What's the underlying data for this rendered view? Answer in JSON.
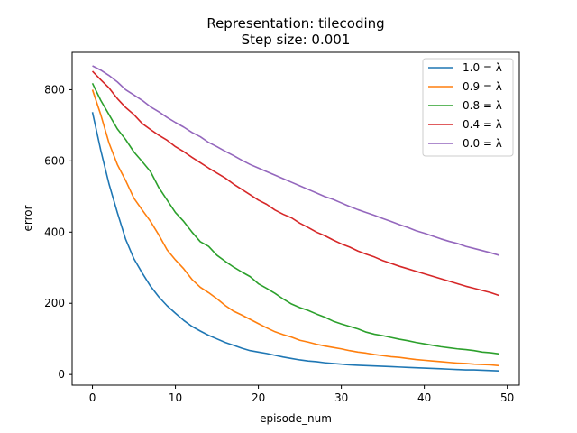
{
  "chart_data": {
    "type": "line",
    "title_lines": [
      "Representation: tilecoding",
      "Step size: 0.001"
    ],
    "xlabel": "episode_num",
    "ylabel": "error",
    "xlim": [
      -2.45,
      51.45
    ],
    "ylim": [
      -30,
      905
    ],
    "xticks": [
      0,
      10,
      20,
      30,
      40,
      50
    ],
    "yticks": [
      0,
      200,
      400,
      600,
      800
    ],
    "grid": false,
    "legend_position": "top-right",
    "x": [
      0,
      1,
      2,
      3,
      4,
      5,
      6,
      7,
      8,
      9,
      10,
      11,
      12,
      13,
      14,
      15,
      16,
      17,
      18,
      19,
      20,
      21,
      22,
      23,
      24,
      25,
      26,
      27,
      28,
      29,
      30,
      31,
      32,
      33,
      34,
      35,
      36,
      37,
      38,
      39,
      40,
      41,
      42,
      43,
      44,
      45,
      46,
      47,
      48,
      49
    ],
    "series": [
      {
        "name": "1.0 = λ",
        "color": "#1f77b4",
        "values": [
          737,
          630,
          535,
          455,
          380,
          325,
          285,
          248,
          218,
          193,
          172,
          152,
          135,
          122,
          110,
          100,
          90,
          82,
          74,
          67,
          63,
          59,
          54,
          49,
          45,
          41,
          38,
          36,
          33,
          31,
          29,
          27,
          26,
          25,
          24,
          23,
          22,
          21,
          20,
          19,
          18,
          17,
          16,
          15,
          14,
          13,
          13,
          12,
          11,
          10
        ]
      },
      {
        "name": "0.9 = λ",
        "color": "#ff7f0e",
        "values": [
          800,
          730,
          650,
          590,
          545,
          495,
          462,
          430,
          392,
          350,
          322,
          297,
          267,
          245,
          230,
          213,
          194,
          178,
          167,
          155,
          143,
          131,
          120,
          112,
          105,
          96,
          91,
          85,
          80,
          76,
          72,
          67,
          63,
          60,
          56,
          53,
          50,
          48,
          45,
          42,
          40,
          38,
          36,
          34,
          32,
          31,
          29,
          28,
          27,
          25
        ]
      },
      {
        "name": "0.8 = λ",
        "color": "#2ca02c",
        "values": [
          818,
          770,
          730,
          690,
          660,
          625,
          598,
          570,
          525,
          490,
          455,
          430,
          400,
          373,
          360,
          335,
          318,
          302,
          288,
          275,
          255,
          242,
          228,
          212,
          198,
          188,
          180,
          170,
          161,
          150,
          142,
          135,
          128,
          119,
          113,
          109,
          104,
          99,
          95,
          90,
          86,
          82,
          78,
          75,
          72,
          70,
          67,
          63,
          61,
          58
        ]
      },
      {
        "name": "0.4 = λ",
        "color": "#d62728",
        "values": [
          852,
          828,
          805,
          775,
          750,
          730,
          705,
          688,
          672,
          658,
          640,
          626,
          610,
          595,
          580,
          566,
          552,
          535,
          520,
          505,
          490,
          478,
          462,
          450,
          440,
          425,
          413,
          400,
          390,
          378,
          367,
          358,
          347,
          338,
          330,
          320,
          312,
          304,
          297,
          290,
          283,
          276,
          269,
          262,
          255,
          248,
          242,
          236,
          230,
          222
        ]
      },
      {
        "name": "0.0 = λ",
        "color": "#9467bd",
        "values": [
          867,
          855,
          840,
          822,
          800,
          785,
          770,
          752,
          738,
          722,
          708,
          695,
          680,
          668,
          652,
          640,
          627,
          615,
          602,
          590,
          580,
          570,
          560,
          550,
          540,
          530,
          520,
          510,
          500,
          492,
          482,
          472,
          463,
          455,
          447,
          438,
          430,
          421,
          413,
          404,
          397,
          389,
          381,
          374,
          368,
          360,
          354,
          348,
          342,
          335
        ]
      }
    ]
  }
}
